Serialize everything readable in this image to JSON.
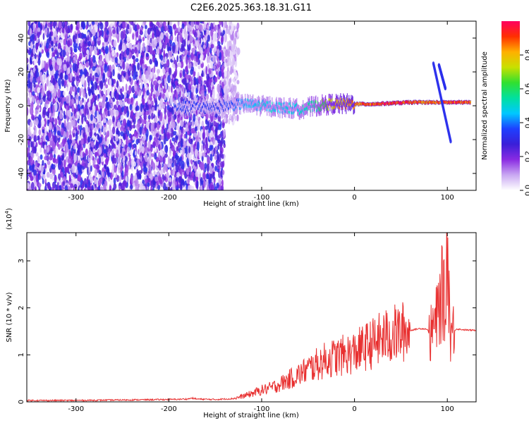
{
  "title": "C2E6.2025.363.18.31.G11",
  "chart_data": [
    {
      "type": "heatmap",
      "title": "C2E6.2025.363.18.31.G11",
      "xlabel": "Height of straight line (km)",
      "ylabel": "Frequency (Hz)",
      "xlim": [
        -353,
        131
      ],
      "ylim": [
        -50,
        50
      ],
      "xticks": [
        -300,
        -200,
        -100,
        0,
        100
      ],
      "xtick_labels": [
        "-300",
        "-200",
        "-100",
        "0",
        "100"
      ],
      "yticks": [
        -40,
        -20,
        0,
        20,
        40
      ],
      "ytick_labels": [
        "-40",
        "-20",
        "0",
        "20",
        "40"
      ],
      "colorbar": {
        "label": "Normalized spectral amplitude",
        "range": [
          0,
          1
        ],
        "ticks": [
          0,
          0.2,
          0.4,
          0.6,
          0.8
        ],
        "tick_labels": [
          "0.0",
          "0.2",
          "0.4",
          "0.6",
          "0.8"
        ],
        "colors": [
          "#ffffff",
          "#c9a8f2",
          "#8a2be2",
          "#3a1fd8",
          "#1e40ff",
          "#00c8ff",
          "#00e0a0",
          "#30e030",
          "#c8e000",
          "#ffb000",
          "#ff3000",
          "#ff0060"
        ]
      },
      "regions": [
        {
          "name": "noise",
          "x_range": [
            -353,
            -140
          ],
          "y_range": [
            -50,
            50
          ],
          "amplitude": 0.22
        },
        {
          "name": "noise-patch",
          "x_range": [
            -140,
            -125
          ],
          "y_range": [
            -10,
            50
          ],
          "amplitude": 0.08
        }
      ],
      "signal_track": [
        {
          "x": -195,
          "y": -1,
          "amplitude": 0.35
        },
        {
          "x": -140,
          "y": 0,
          "amplitude": 0.35
        },
        {
          "x": -120,
          "y": 1,
          "amplitude": 0.45
        },
        {
          "x": -100,
          "y": 0,
          "amplitude": 0.5
        },
        {
          "x": -80,
          "y": -1,
          "amplitude": 0.5
        },
        {
          "x": -60,
          "y": -2,
          "amplitude": 0.5
        },
        {
          "x": -40,
          "y": 0,
          "amplitude": 0.6
        },
        {
          "x": -25,
          "y": 1,
          "amplitude": 0.8
        },
        {
          "x": 0,
          "y": 1,
          "amplitude": 0.9
        },
        {
          "x": 20,
          "y": 1,
          "amplitude": 0.95
        },
        {
          "x": 40,
          "y": 1.5,
          "amplitude": 0.98
        },
        {
          "x": 60,
          "y": 2,
          "amplitude": 0.98
        },
        {
          "x": 80,
          "y": 2,
          "amplitude": 0.9
        },
        {
          "x": 100,
          "y": 2,
          "amplitude": 0.95
        },
        {
          "x": 125,
          "y": 2,
          "amplitude": 0.95
        }
      ],
      "chirps": [
        {
          "x_start": 85,
          "x_end": 104,
          "y_start": 25,
          "y_end": -22
        },
        {
          "x_start": 91,
          "x_end": 98,
          "y_start": 24,
          "y_end": 10
        }
      ]
    },
    {
      "type": "line",
      "xlabel": "Height of straight line (km)",
      "ylabel": "SNR (10 * v/v)",
      "y_multiplier": "(x10",
      "y_multiplier_exponent": "4",
      "y_multiplier_close": ")",
      "xlim": [
        -353,
        131
      ],
      "ylim": [
        0,
        3.6
      ],
      "xticks": [
        -300,
        -200,
        -100,
        0,
        100
      ],
      "xtick_labels": [
        "-300",
        "-200",
        "-100",
        "0",
        "100"
      ],
      "yticks": [
        0,
        1,
        2,
        3
      ],
      "ytick_labels": [
        "0",
        "1",
        "2",
        "3"
      ],
      "color": "#e83030",
      "series": [
        {
          "x": [
            -353,
            -300,
            -250,
            -200,
            -180,
            -175,
            -170,
            -150,
            -130,
            -120,
            -110,
            -100,
            -90,
            -80,
            -70,
            -60,
            -50,
            -40,
            -30,
            -20,
            -10,
            0,
            10,
            20,
            30,
            40,
            50,
            60,
            70,
            78,
            82,
            85,
            88,
            92,
            95,
            98,
            100,
            103,
            106,
            110,
            120,
            131
          ],
          "y": [
            0.03,
            0.03,
            0.04,
            0.05,
            0.06,
            0.08,
            0.06,
            0.05,
            0.07,
            0.12,
            0.18,
            0.25,
            0.3,
            0.38,
            0.48,
            0.58,
            0.7,
            0.8,
            0.9,
            0.95,
            1.0,
            1.05,
            1.15,
            1.25,
            1.35,
            1.42,
            1.48,
            1.52,
            1.56,
            1.55,
            1.4,
            1.6,
            1.7,
            2.1,
            2.4,
            1.8,
            3.6,
            1.5,
            1.5,
            1.55,
            1.53,
            1.52
          ]
        }
      ]
    }
  ]
}
